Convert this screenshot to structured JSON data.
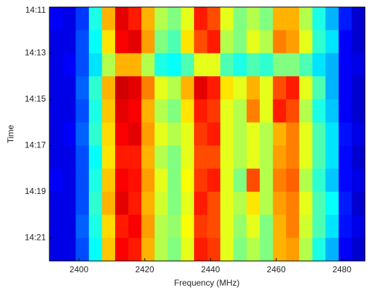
{
  "chart_data": {
    "type": "heatmap",
    "x_label": "Frequency (MHz)",
    "y_label": "Time",
    "colormap": "jet",
    "zlim": [
      0,
      1
    ],
    "xlim": [
      2391,
      2487
    ],
    "xticks": [
      2400,
      2420,
      2440,
      2460,
      2480
    ],
    "x": [
      2393,
      2397,
      2401,
      2405,
      2409,
      2413,
      2417,
      2421,
      2425,
      2429,
      2433,
      2437,
      2441,
      2445,
      2449,
      2453,
      2457,
      2461,
      2465,
      2469,
      2473,
      2477,
      2481,
      2485
    ],
    "y": [
      "14:11",
      null,
      "14:13",
      null,
      "14:15",
      null,
      "14:17",
      null,
      "14:19",
      null,
      "14:21"
    ],
    "z": [
      [
        0.12,
        0.1,
        0.18,
        0.4,
        0.7,
        0.9,
        0.85,
        0.7,
        0.55,
        0.5,
        0.6,
        0.85,
        0.8,
        0.6,
        0.5,
        0.55,
        0.5,
        0.7,
        0.7,
        0.55,
        0.4,
        0.3,
        0.15,
        0.08
      ],
      [
        0.1,
        0.1,
        0.2,
        0.38,
        0.65,
        0.88,
        0.9,
        0.72,
        0.5,
        0.45,
        0.65,
        0.8,
        0.85,
        0.55,
        0.5,
        0.6,
        0.55,
        0.75,
        0.72,
        0.6,
        0.42,
        0.35,
        0.12,
        0.08
      ],
      [
        0.1,
        0.12,
        0.2,
        0.35,
        0.55,
        0.7,
        0.7,
        0.55,
        0.4,
        0.38,
        0.45,
        0.6,
        0.6,
        0.45,
        0.4,
        0.45,
        0.42,
        0.5,
        0.5,
        0.45,
        0.35,
        0.3,
        0.12,
        0.1
      ],
      [
        0.1,
        0.1,
        0.22,
        0.42,
        0.7,
        0.92,
        0.9,
        0.75,
        0.6,
        0.55,
        0.7,
        0.9,
        0.85,
        0.65,
        0.6,
        0.7,
        0.6,
        0.8,
        0.85,
        0.6,
        0.45,
        0.3,
        0.12,
        0.08
      ],
      [
        0.1,
        0.1,
        0.2,
        0.4,
        0.68,
        0.9,
        0.88,
        0.7,
        0.55,
        0.5,
        0.65,
        0.85,
        0.82,
        0.6,
        0.55,
        0.75,
        0.6,
        0.85,
        0.8,
        0.55,
        0.4,
        0.32,
        0.12,
        0.08
      ],
      [
        0.1,
        0.12,
        0.22,
        0.42,
        0.66,
        0.88,
        0.9,
        0.72,
        0.6,
        0.55,
        0.6,
        0.82,
        0.85,
        0.6,
        0.55,
        0.6,
        0.55,
        0.7,
        0.75,
        0.6,
        0.45,
        0.35,
        0.14,
        0.1
      ],
      [
        0.1,
        0.1,
        0.2,
        0.38,
        0.65,
        0.85,
        0.85,
        0.7,
        0.55,
        0.5,
        0.6,
        0.8,
        0.8,
        0.6,
        0.55,
        0.6,
        0.55,
        0.72,
        0.75,
        0.6,
        0.45,
        0.35,
        0.13,
        0.08
      ],
      [
        0.12,
        0.1,
        0.2,
        0.4,
        0.68,
        0.88,
        0.86,
        0.72,
        0.6,
        0.5,
        0.62,
        0.82,
        0.85,
        0.6,
        0.5,
        0.8,
        0.55,
        0.75,
        0.78,
        0.55,
        0.42,
        0.32,
        0.13,
        0.1
      ],
      [
        0.1,
        0.1,
        0.2,
        0.42,
        0.7,
        0.9,
        0.85,
        0.7,
        0.58,
        0.5,
        0.6,
        0.85,
        0.8,
        0.6,
        0.55,
        0.65,
        0.55,
        0.72,
        0.75,
        0.6,
        0.45,
        0.38,
        0.15,
        0.08
      ],
      [
        0.1,
        0.1,
        0.22,
        0.4,
        0.66,
        0.85,
        0.88,
        0.72,
        0.55,
        0.52,
        0.62,
        0.82,
        0.8,
        0.6,
        0.52,
        0.6,
        0.5,
        0.7,
        0.75,
        0.58,
        0.45,
        0.35,
        0.14,
        0.1
      ],
      [
        0.1,
        0.1,
        0.2,
        0.38,
        0.68,
        0.88,
        0.85,
        0.7,
        0.55,
        0.5,
        0.6,
        0.85,
        0.82,
        0.6,
        0.5,
        0.55,
        0.5,
        0.7,
        0.72,
        0.55,
        0.4,
        0.3,
        0.12,
        0.08
      ]
    ]
  }
}
